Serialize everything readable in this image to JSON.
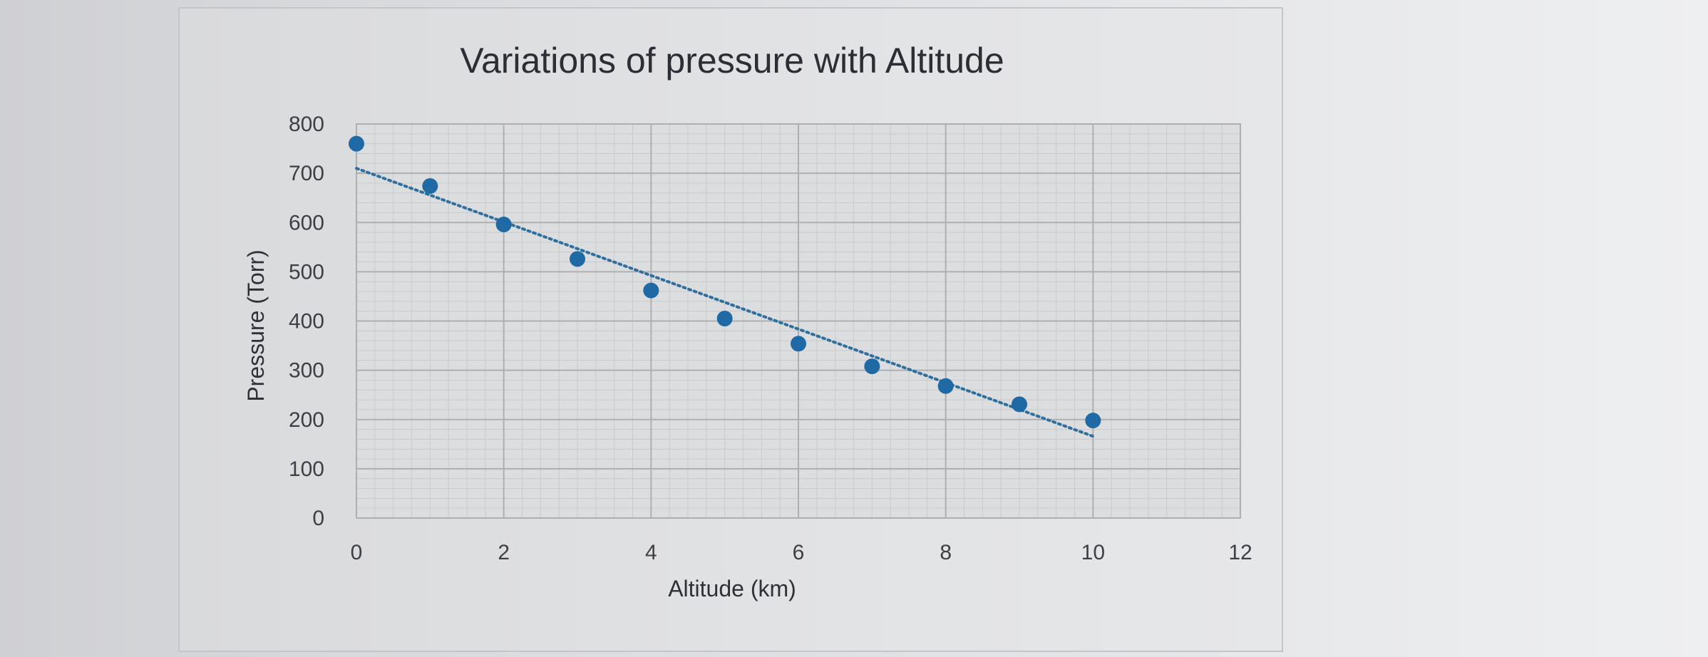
{
  "chart_data": {
    "type": "scatter",
    "title": "Variations of pressure with Altitude",
    "xlabel": "Altitude (km)",
    "ylabel": "Pressure (Torr)",
    "xlim": [
      0,
      12
    ],
    "ylim": [
      0,
      800
    ],
    "x_ticks": [
      "0",
      "2",
      "4",
      "6",
      "8",
      "10",
      "12"
    ],
    "y_ticks": [
      "0",
      "100",
      "200",
      "300",
      "400",
      "500",
      "600",
      "700",
      "800"
    ],
    "grid": true,
    "legend": "none",
    "series": [
      {
        "x": [
          0,
          1,
          2,
          3,
          4,
          5,
          6,
          7,
          8,
          9,
          10
        ],
        "y": [
          760,
          674,
          596,
          526,
          462,
          405,
          354,
          308,
          268,
          231,
          198
        ]
      }
    ],
    "trendline": {
      "style": "dotted",
      "kind": "linear",
      "x": [
        0,
        10
      ],
      "y": [
        710,
        166
      ]
    },
    "colors": {
      "marker": "#1f6aa5",
      "trendline": "#2f6f9e",
      "grid": "#b9babd",
      "text": "#3d3f44"
    }
  }
}
